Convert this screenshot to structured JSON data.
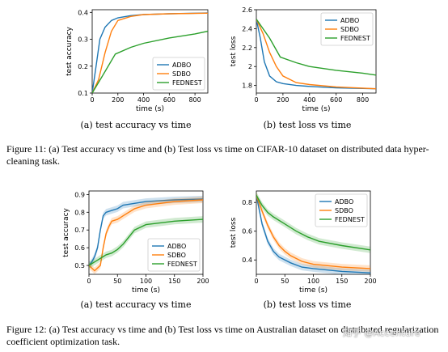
{
  "colors": {
    "ADBO": "#1f77b4",
    "SDBO": "#ff7f0e",
    "FEDNEST": "#2ca02c"
  },
  "figure11": {
    "caption": "Figure 11: (a) Test accuracy vs time and (b) Test loss vs time on CIFAR-10 dataset on distributed data hyper-cleaning task.",
    "a_subcaption": "(a) test accuracy vs time",
    "b_subcaption": "(b) test loss vs time"
  },
  "figure12": {
    "caption": "Figure 12: (a) Test accuracy vs time and (b) Test loss vs time on Australian dataset on distributed regularization coefficient optimization task.",
    "a_subcaption": "(a) test accuracy vs time",
    "b_subcaption": "(b) test loss vs time"
  },
  "watermark": "知乎 @Accenture",
  "chart_data": [
    {
      "type": "line",
      "xlabel": "time (s)",
      "ylabel": "test accuracy",
      "xlim": [
        0,
        900
      ],
      "ylim": [
        0.1,
        0.41
      ],
      "xticks": [
        0,
        200,
        400,
        600,
        800
      ],
      "yticks": [
        0.1,
        0.2,
        0.3,
        0.4
      ],
      "legend": "lower-right",
      "grid": false,
      "series": [
        {
          "name": "ADBO",
          "x": [
            0,
            30,
            60,
            100,
            150,
            200,
            300,
            400,
            600,
            900
          ],
          "y": [
            0.1,
            0.2,
            0.3,
            0.345,
            0.37,
            0.38,
            0.388,
            0.392,
            0.395,
            0.398
          ]
        },
        {
          "name": "SDBO",
          "x": [
            0,
            50,
            100,
            150,
            200,
            300,
            400,
            600,
            900
          ],
          "y": [
            0.1,
            0.15,
            0.25,
            0.33,
            0.37,
            0.385,
            0.392,
            0.395,
            0.397
          ]
        },
        {
          "name": "FEDNEST",
          "x": [
            0,
            100,
            180,
            300,
            400,
            600,
            800,
            900
          ],
          "y": [
            0.1,
            0.18,
            0.245,
            0.27,
            0.285,
            0.305,
            0.32,
            0.33
          ]
        }
      ]
    },
    {
      "type": "line",
      "xlabel": "time (s)",
      "ylabel": "test loss",
      "xlim": [
        0,
        900
      ],
      "ylim": [
        1.72,
        2.6
      ],
      "xticks": [
        0,
        200,
        400,
        600,
        800
      ],
      "yticks": [
        1.8,
        2.0,
        2.2,
        2.4,
        2.6
      ],
      "legend": "top-right",
      "grid": false,
      "series": [
        {
          "name": "ADBO",
          "x": [
            0,
            30,
            60,
            100,
            150,
            200,
            300,
            400,
            600,
            900
          ],
          "y": [
            2.5,
            2.3,
            2.05,
            1.9,
            1.84,
            1.82,
            1.8,
            1.79,
            1.775,
            1.765
          ]
        },
        {
          "name": "SDBO",
          "x": [
            0,
            50,
            100,
            150,
            200,
            300,
            400,
            600,
            900
          ],
          "y": [
            2.5,
            2.35,
            2.15,
            2.0,
            1.9,
            1.83,
            1.81,
            1.785,
            1.765
          ]
        },
        {
          "name": "FEDNEST",
          "x": [
            0,
            100,
            180,
            300,
            400,
            600,
            800,
            900
          ],
          "y": [
            2.5,
            2.3,
            2.1,
            2.04,
            2.0,
            1.96,
            1.93,
            1.91
          ]
        }
      ]
    },
    {
      "type": "line",
      "xlabel": "time (s)",
      "ylabel": "test accuracy",
      "xlim": [
        0,
        200
      ],
      "ylim": [
        0.45,
        0.92
      ],
      "xticks": [
        0,
        50,
        100,
        150,
        200
      ],
      "yticks": [
        0.5,
        0.6,
        0.7,
        0.8,
        0.9
      ],
      "legend": "lower-right",
      "grid": false,
      "series": [
        {
          "name": "ADBO",
          "x": [
            0,
            5,
            10,
            15,
            20,
            25,
            30,
            40,
            50,
            60,
            80,
            100,
            150,
            200
          ],
          "y": [
            0.5,
            0.52,
            0.55,
            0.6,
            0.7,
            0.78,
            0.8,
            0.81,
            0.82,
            0.84,
            0.85,
            0.86,
            0.87,
            0.875
          ]
        },
        {
          "name": "SDBO",
          "x": [
            0,
            10,
            20,
            25,
            30,
            35,
            40,
            50,
            60,
            80,
            100,
            150,
            200
          ],
          "y": [
            0.5,
            0.47,
            0.5,
            0.6,
            0.68,
            0.72,
            0.75,
            0.76,
            0.78,
            0.82,
            0.84,
            0.86,
            0.87
          ]
        },
        {
          "name": "FEDNEST",
          "x": [
            0,
            10,
            20,
            30,
            40,
            50,
            60,
            70,
            80,
            100,
            150,
            200
          ],
          "y": [
            0.5,
            0.52,
            0.54,
            0.56,
            0.57,
            0.59,
            0.62,
            0.66,
            0.7,
            0.73,
            0.75,
            0.76
          ]
        }
      ]
    },
    {
      "type": "line",
      "xlabel": "time (s)",
      "ylabel": "test loss",
      "xlim": [
        0,
        200
      ],
      "ylim": [
        0.3,
        0.88
      ],
      "xticks": [
        0,
        50,
        100,
        150,
        200
      ],
      "yticks": [
        0.4,
        0.6,
        0.8
      ],
      "legend": "top-right",
      "grid": false,
      "series": [
        {
          "name": "ADBO",
          "x": [
            0,
            10,
            20,
            30,
            40,
            50,
            60,
            80,
            100,
            150,
            200
          ],
          "y": [
            0.85,
            0.65,
            0.53,
            0.46,
            0.42,
            0.4,
            0.38,
            0.35,
            0.34,
            0.32,
            0.31
          ]
        },
        {
          "name": "SDBO",
          "x": [
            0,
            10,
            20,
            30,
            40,
            50,
            60,
            80,
            100,
            150,
            200
          ],
          "y": [
            0.85,
            0.74,
            0.64,
            0.56,
            0.5,
            0.46,
            0.43,
            0.39,
            0.37,
            0.35,
            0.34
          ]
        },
        {
          "name": "FEDNEST",
          "x": [
            0,
            10,
            20,
            30,
            50,
            70,
            90,
            110,
            150,
            200
          ],
          "y": [
            0.85,
            0.78,
            0.73,
            0.7,
            0.65,
            0.6,
            0.56,
            0.53,
            0.5,
            0.47
          ]
        }
      ]
    }
  ]
}
